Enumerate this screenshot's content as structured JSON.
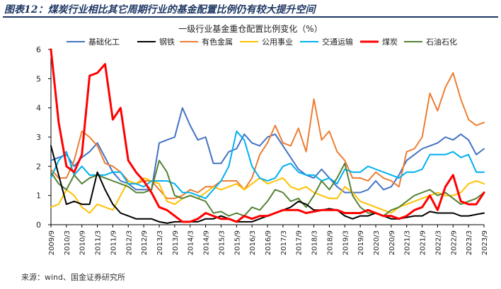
{
  "figure": {
    "title": "图表12：煤炭行业相比其它周期行业的基金配置比例仍有较大提升空间",
    "source": "来源：wind、国金证券研究所"
  },
  "chart_data": {
    "type": "line",
    "title": "一级行业基金重仓配置比例变化（%）",
    "x": [
      "2009/9",
      "2009/12",
      "2010/3",
      "2010/6",
      "2010/9",
      "2010/12",
      "2011/3",
      "2011/6",
      "2011/9",
      "2011/12",
      "2012/3",
      "2012/6",
      "2012/9",
      "2012/12",
      "2013/3",
      "2013/6",
      "2013/9",
      "2013/12",
      "2014/3",
      "2014/6",
      "2014/9",
      "2014/12",
      "2015/3",
      "2015/6",
      "2015/9",
      "2015/12",
      "2016/3",
      "2016/6",
      "2016/9",
      "2016/12",
      "2017/3",
      "2017/6",
      "2017/9",
      "2017/12",
      "2018/3",
      "2018/6",
      "2018/9",
      "2018/12",
      "2019/3",
      "2019/6",
      "2019/9",
      "2019/12",
      "2020/3",
      "2020/6",
      "2020/9",
      "2020/12",
      "2021/3",
      "2021/6",
      "2021/9",
      "2021/12",
      "2022/3",
      "2022/6",
      "2022/9",
      "2022/12",
      "2023/3",
      "2023/6",
      "2023/9"
    ],
    "xticks": [
      "2009/9",
      "2010/3",
      "2010/9",
      "2011/3",
      "2011/9",
      "2012/3",
      "2012/9",
      "2013/3",
      "2013/9",
      "2014/3",
      "2014/9",
      "2015/3",
      "2015/9",
      "2016/3",
      "2016/9",
      "2017/3",
      "2017/9",
      "2018/3",
      "2018/9",
      "2019/3",
      "2019/9",
      "2020/3",
      "2020/9",
      "2021/3",
      "2021/9",
      "2022/3",
      "2022/9",
      "2023/3",
      "2023/9"
    ],
    "ylim": [
      0,
      6
    ],
    "yticks": [
      "0",
      "1",
      "2",
      "3",
      "4",
      "5",
      "6"
    ],
    "grid": false,
    "legend_position": "top",
    "series": [
      {
        "name": "基础化工",
        "color": "#4472C4",
        "width": 2,
        "values": [
          2.2,
          2.3,
          2.4,
          2.0,
          2.3,
          2.5,
          2.8,
          2.3,
          1.8,
          1.5,
          1.4,
          1.2,
          1.2,
          1.2,
          2.8,
          2.9,
          3.0,
          4.0,
          3.4,
          2.9,
          3.0,
          2.1,
          2.1,
          2.5,
          2.6,
          3.1,
          2.8,
          2.7,
          3.0,
          3.1,
          2.7,
          2.3,
          1.9,
          1.7,
          1.6,
          1.9,
          1.6,
          1.3,
          1.1,
          1.1,
          1.1,
          1.2,
          1.5,
          1.2,
          1.3,
          1.7,
          2.2,
          2.4,
          2.6,
          2.7,
          2.8,
          3.0,
          2.9,
          3.1,
          2.9,
          2.4,
          2.6
        ]
      },
      {
        "name": "钢铁",
        "color": "#000000",
        "width": 2,
        "values": [
          2.7,
          1.7,
          0.7,
          0.8,
          0.7,
          0.7,
          1.8,
          1.2,
          0.7,
          0.4,
          0.3,
          0.2,
          0.2,
          0.2,
          0.1,
          0.05,
          0.1,
          0.1,
          0.1,
          0.1,
          0.2,
          0.2,
          0.3,
          0.2,
          0.1,
          0.1,
          0.1,
          0.2,
          0.3,
          0.4,
          0.5,
          0.6,
          0.8,
          0.7,
          0.5,
          0.5,
          0.55,
          0.5,
          0.3,
          0.2,
          0.3,
          0.3,
          0.4,
          0.3,
          0.2,
          0.2,
          0.25,
          0.3,
          0.3,
          0.45,
          0.4,
          0.4,
          0.4,
          0.3,
          0.3,
          0.35,
          0.4
        ]
      },
      {
        "name": "有色金属",
        "color": "#ED7D31",
        "width": 2,
        "values": [
          1.9,
          1.6,
          1.6,
          2.2,
          3.2,
          3.0,
          2.7,
          2.1,
          2.0,
          1.8,
          1.5,
          1.4,
          1.5,
          1.5,
          1.2,
          0.9,
          0.9,
          1.0,
          1.2,
          1.1,
          1.3,
          1.3,
          1.5,
          1.5,
          1.5,
          1.2,
          1.6,
          2.4,
          2.8,
          3.4,
          2.8,
          2.7,
          3.3,
          2.5,
          4.3,
          2.9,
          3.2,
          2.5,
          2.2,
          1.6,
          1.6,
          1.5,
          1.8,
          1.6,
          1.5,
          1.3,
          2.5,
          2.6,
          3.0,
          4.5,
          3.9,
          4.7,
          5.2,
          4.3,
          3.6,
          3.4,
          3.5
        ]
      },
      {
        "name": "公用事业",
        "color": "#FFC000",
        "width": 2,
        "values": [
          0.6,
          0.7,
          1.2,
          1.0,
          0.6,
          0.4,
          0.7,
          0.6,
          0.5,
          1.0,
          1.5,
          1.4,
          1.6,
          1.5,
          1.4,
          0.8,
          0.7,
          0.9,
          1.0,
          0.9,
          1.1,
          1.3,
          1.2,
          1.3,
          1.4,
          1.2,
          1.4,
          1.6,
          1.4,
          1.5,
          1.6,
          1.3,
          1.2,
          1.3,
          1.1,
          1.0,
          0.9,
          0.9,
          1.3,
          1.1,
          0.8,
          0.7,
          0.6,
          0.5,
          0.4,
          0.6,
          0.7,
          0.8,
          0.9,
          1.0,
          1.1,
          1.0,
          1.0,
          1.1,
          1.4,
          1.5,
          1.4
        ]
      },
      {
        "name": "交通运输",
        "color": "#00B0F0",
        "width": 2,
        "values": [
          1.6,
          2.2,
          2.5,
          1.7,
          2.0,
          1.7,
          1.7,
          1.7,
          1.8,
          1.8,
          1.4,
          1.4,
          1.3,
          1.5,
          1.5,
          1.5,
          1.4,
          1.1,
          1.1,
          1.0,
          0.9,
          1.2,
          1.5,
          2.0,
          3.2,
          2.9,
          2.0,
          1.6,
          1.5,
          1.6,
          2.0,
          2.1,
          1.8,
          1.7,
          1.7,
          1.5,
          1.6,
          1.4,
          1.9,
          1.8,
          1.8,
          2.0,
          1.9,
          1.8,
          1.7,
          1.6,
          1.8,
          1.8,
          1.9,
          2.4,
          2.4,
          2.4,
          2.5,
          2.3,
          2.4,
          1.8,
          1.8
        ]
      },
      {
        "name": "煤炭",
        "color": "#FF0000",
        "width": 3,
        "values": [
          6.0,
          3.5,
          2.0,
          1.8,
          2.4,
          5.1,
          5.2,
          5.5,
          3.6,
          4.0,
          2.2,
          1.8,
          1.5,
          1.1,
          0.6,
          0.5,
          0.3,
          0.1,
          0.1,
          0.2,
          0.4,
          0.3,
          0.2,
          0.2,
          0.1,
          0.3,
          0.2,
          0.3,
          0.3,
          0.4,
          0.5,
          0.5,
          0.5,
          0.4,
          0.45,
          0.5,
          0.5,
          0.5,
          0.4,
          0.4,
          0.4,
          0.5,
          0.4,
          0.3,
          0.3,
          0.2,
          0.3,
          0.5,
          0.6,
          1.0,
          0.5,
          1.3,
          1.7,
          0.8,
          0.7,
          0.7,
          1.1
        ]
      },
      {
        "name": "石油石化",
        "color": "#548235",
        "width": 2,
        "values": [
          1.8,
          1.4,
          1.2,
          1.7,
          1.4,
          1.6,
          1.7,
          1.6,
          1.5,
          1.4,
          1.3,
          1.1,
          1.1,
          1.2,
          2.2,
          1.8,
          1.0,
          0.9,
          1.0,
          0.9,
          0.8,
          0.4,
          0.45,
          0.3,
          0.4,
          0.3,
          0.6,
          0.5,
          0.8,
          1.2,
          1.1,
          0.8,
          0.9,
          0.6,
          1.0,
          1.5,
          1.2,
          1.6,
          2.1,
          1.0,
          0.6,
          0.4,
          0.4,
          0.3,
          0.5,
          0.6,
          0.8,
          1.0,
          1.1,
          1.2,
          1.0,
          1.1,
          0.9,
          0.7,
          0.8,
          0.9,
          1.1
        ]
      }
    ]
  }
}
